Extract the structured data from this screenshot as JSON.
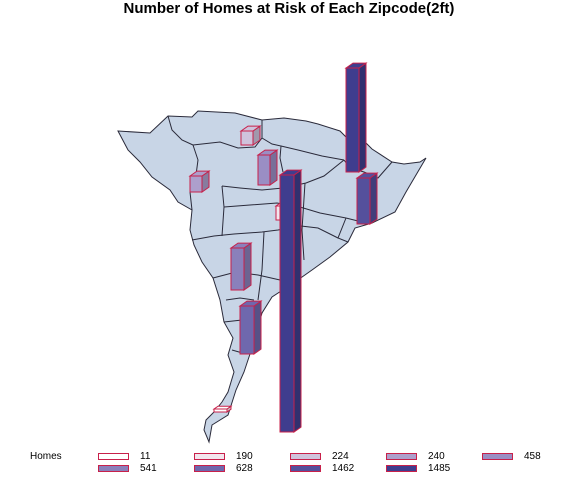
{
  "title": "Number of Homes at Risk of Each Zipcode(2ft)",
  "colors": {
    "land_fill": "#c8d5e6",
    "land_stroke": "#2a2a3a",
    "bar_outline": "#c8204a"
  },
  "legend": {
    "label": "Homes",
    "entries": [
      {
        "label": "11",
        "color": "#ffffff"
      },
      {
        "label": "190",
        "color": "#f2e6ee"
      },
      {
        "label": "224",
        "color": "#cfc3dc"
      },
      {
        "label": "240",
        "color": "#ad9fcc"
      },
      {
        "label": "458",
        "color": "#9a8ec4"
      },
      {
        "label": "541",
        "color": "#8a80bb"
      },
      {
        "label": "628",
        "color": "#6f68ad"
      },
      {
        "label": "1462",
        "color": "#55509c"
      },
      {
        "label": "1485",
        "color": "#3f3d8e"
      }
    ]
  },
  "chart_data": {
    "type": "bar",
    "series_label": "Homes",
    "values": [
      11,
      190,
      224,
      240,
      458,
      541,
      628,
      1462,
      1485
    ]
  }
}
